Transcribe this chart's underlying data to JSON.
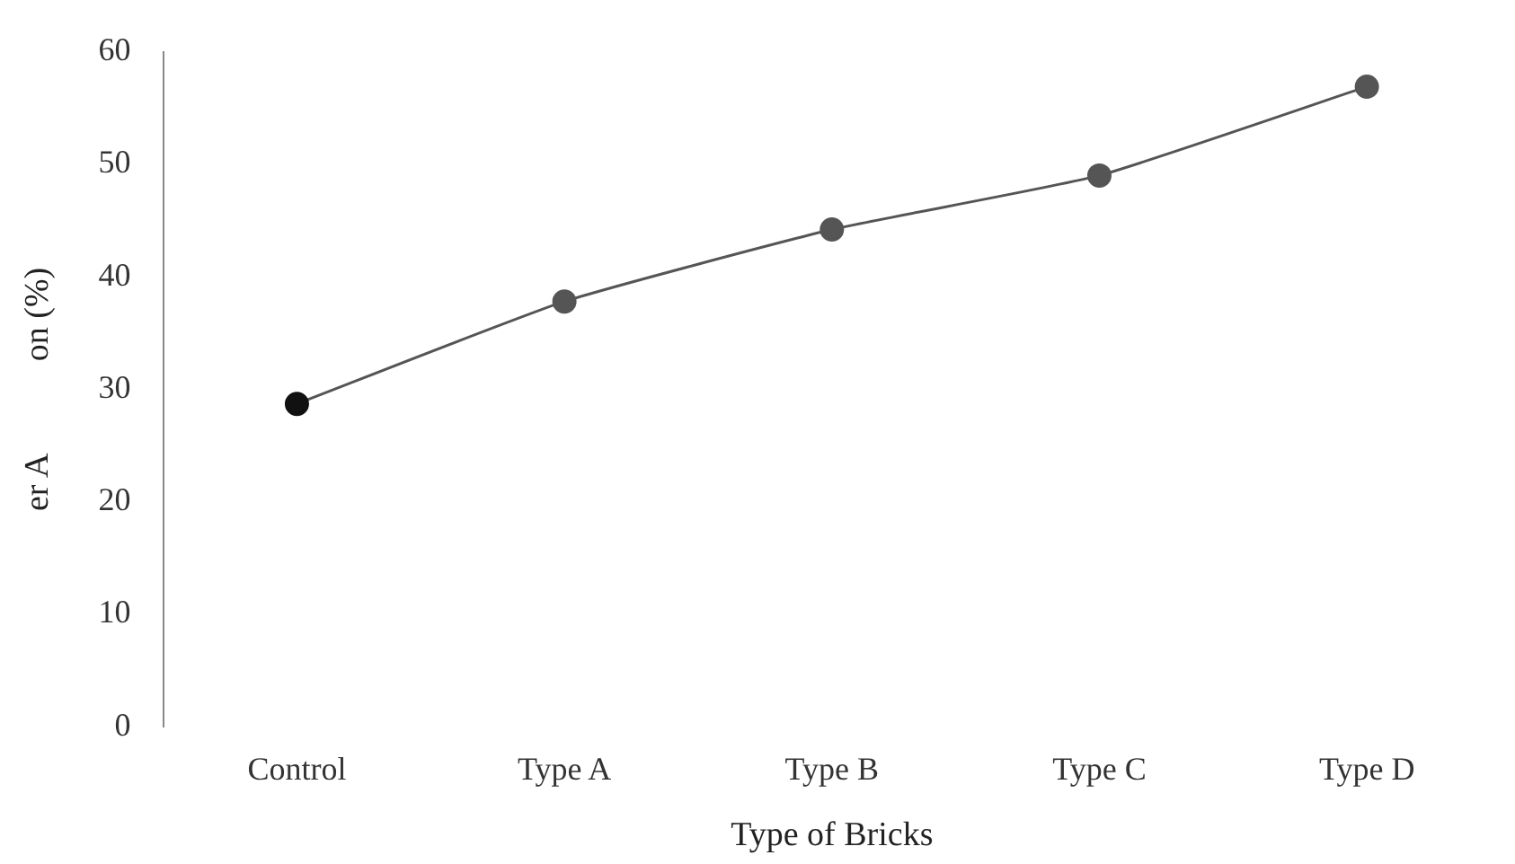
{
  "chart_data": {
    "type": "line",
    "xlabel": "Type of Bricks",
    "ylabel": "er A           on (%)",
    "categories": [
      "Control",
      "Type A",
      "Type B",
      "Type C",
      "Type D"
    ],
    "series": [
      {
        "color": "#555555",
        "colors": [
          "#111111",
          "#555555",
          "#555555",
          "#555555",
          "#555555"
        ],
        "values": [
          28.7,
          37.8,
          44.2,
          49.0,
          56.9
        ]
      }
    ],
    "ylim": [
      0,
      60
    ],
    "yticks": [
      0,
      10,
      20,
      30,
      40,
      50,
      60
    ],
    "grid": false,
    "legend": false,
    "marker": "circle",
    "line_style": "solid"
  }
}
